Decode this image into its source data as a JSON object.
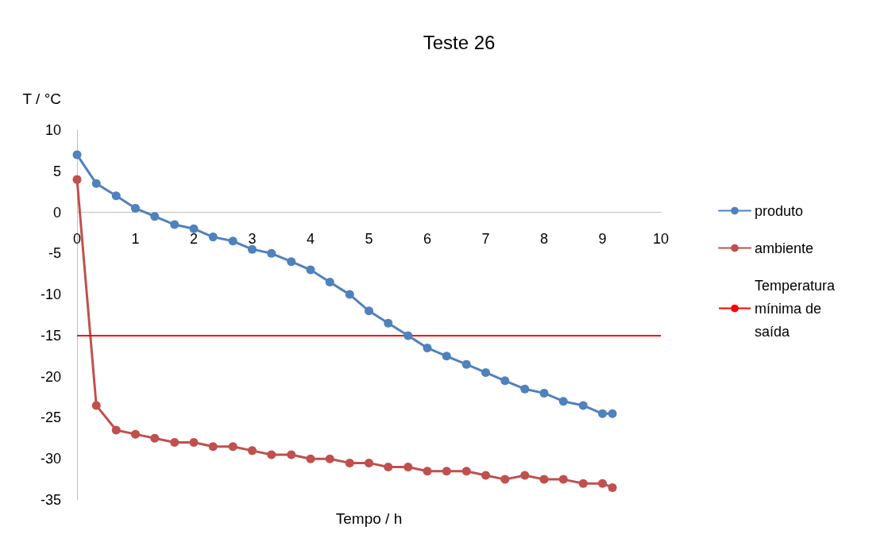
{
  "chart_data": {
    "type": "line",
    "title": "Teste 26",
    "xlabel": "Tempo / h",
    "ylabel": "T / °C",
    "xlim": [
      0,
      10
    ],
    "xticks": [
      0,
      1,
      2,
      3,
      4,
      5,
      6,
      7,
      8,
      9,
      10
    ],
    "ylim": [
      -35,
      10
    ],
    "yticks": [
      -35,
      -30,
      -25,
      -20,
      -15,
      -10,
      -5,
      0,
      5,
      10
    ],
    "grid": false,
    "legend": "right",
    "marker": "circle",
    "line_style": "solid",
    "x": [
      0,
      0.33,
      0.67,
      1,
      1.33,
      1.67,
      2,
      2.33,
      2.67,
      3,
      3.33,
      3.67,
      4,
      4.33,
      4.67,
      5,
      5.33,
      5.67,
      6,
      6.33,
      6.67,
      7,
      7.33,
      7.67,
      8,
      8.33,
      8.67,
      9,
      9.17
    ],
    "series": [
      {
        "name": "produto",
        "color": "#4f81bd",
        "values": [
          7,
          3.5,
          2,
          0.5,
          -0.5,
          -1.5,
          -2,
          -3,
          -3.5,
          -4.5,
          -5,
          -6,
          -7,
          -8.5,
          -10,
          -12,
          -13.5,
          -15,
          -16.5,
          -17.5,
          -18.5,
          -19.5,
          -20.5,
          -21.5,
          -22,
          -23,
          -23.5,
          -24.5,
          -24.5
        ]
      },
      {
        "name": "ambiente",
        "color": "#c0504d",
        "values": [
          4,
          -23.5,
          -26.5,
          -27,
          -27.5,
          -28,
          -28,
          -28.5,
          -28.5,
          -29,
          -29.5,
          -29.5,
          -30,
          -30,
          -30.5,
          -30.5,
          -31,
          -31,
          -31.5,
          -31.5,
          -31.5,
          -32,
          -32.5,
          -32,
          -32.5,
          -32.5,
          -33,
          -33,
          -33.5
        ]
      }
    ],
    "ref_lines": [
      {
        "axis": "y",
        "value": -15,
        "label": "Temperatura mínima de saída",
        "color": "#ff0000"
      }
    ]
  }
}
